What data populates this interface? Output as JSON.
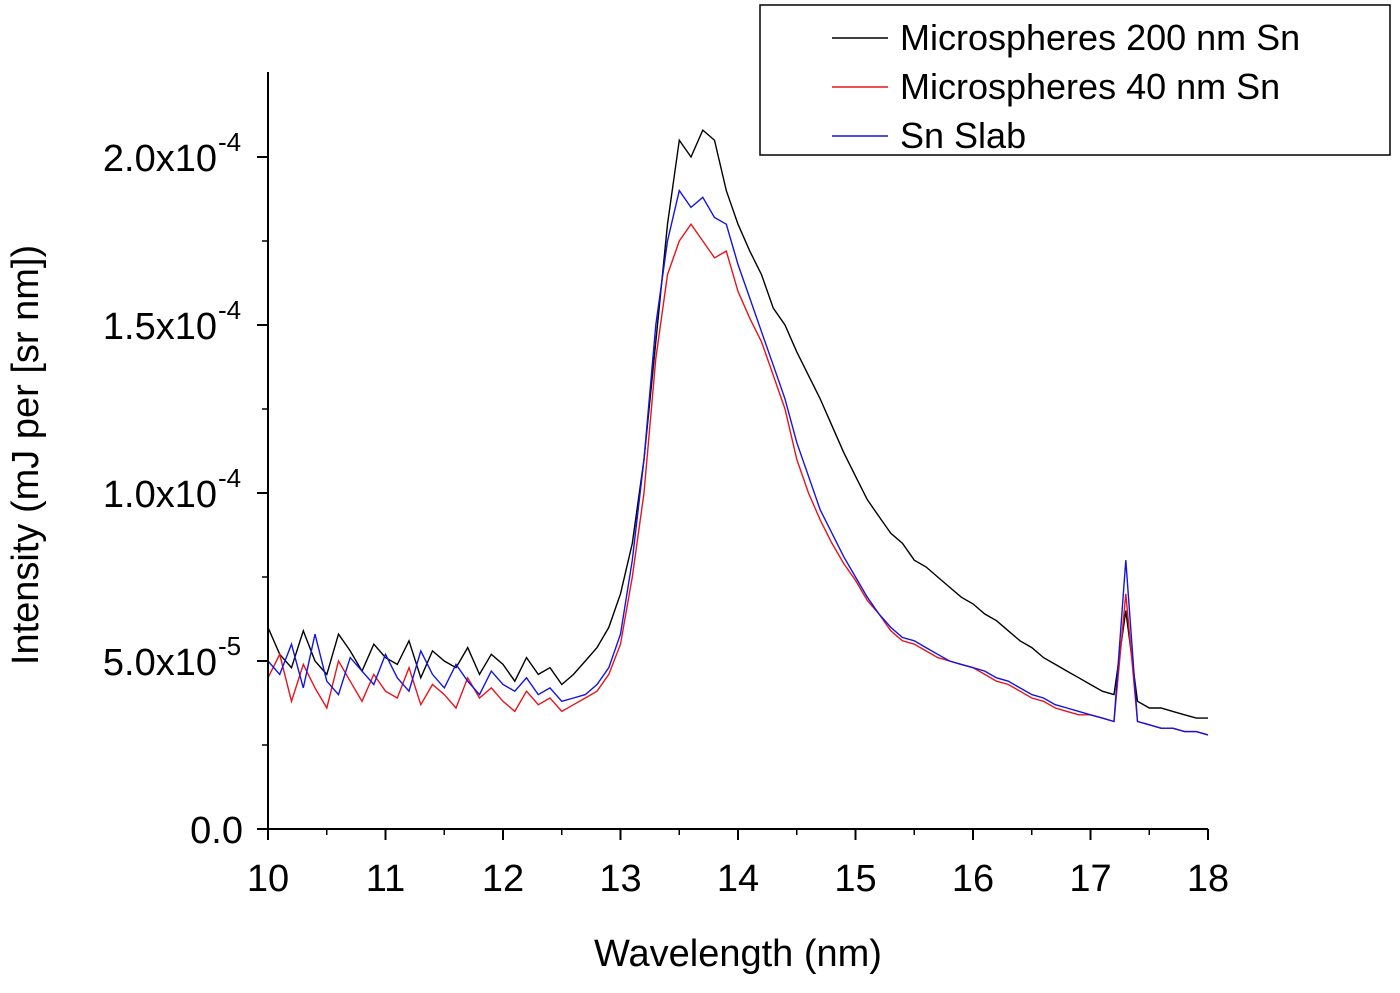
{
  "chart_data": {
    "type": "line",
    "xlabel": "Wavelength (nm)",
    "ylabel": "Intensity (mJ per [sr nm])",
    "xlim": [
      10,
      18
    ],
    "ylim": [
      0,
      0.000225
    ],
    "x_ticks": [
      {
        "value": 10,
        "label": "10"
      },
      {
        "value": 11,
        "label": "11"
      },
      {
        "value": 12,
        "label": "12"
      },
      {
        "value": 13,
        "label": "13"
      },
      {
        "value": 14,
        "label": "14"
      },
      {
        "value": 15,
        "label": "15"
      },
      {
        "value": 16,
        "label": "16"
      },
      {
        "value": 17,
        "label": "17"
      },
      {
        "value": 18,
        "label": "18"
      }
    ],
    "y_ticks": [
      {
        "value": 0,
        "label": "0.0",
        "exponent": ""
      },
      {
        "value": 5e-05,
        "label": "5.0x10",
        "exponent": "-5"
      },
      {
        "value": 0.0001,
        "label": "1.0x10",
        "exponent": "-4"
      },
      {
        "value": 0.00015,
        "label": "1.5x10",
        "exponent": "-4"
      },
      {
        "value": 0.0002,
        "label": "2.0x10",
        "exponent": "-4"
      }
    ],
    "grid": false,
    "legend_position": "top-right",
    "x": [
      10.0,
      10.1,
      10.2,
      10.3,
      10.4,
      10.5,
      10.6,
      10.7,
      10.8,
      10.9,
      11.0,
      11.1,
      11.2,
      11.3,
      11.4,
      11.5,
      11.6,
      11.7,
      11.8,
      11.9,
      12.0,
      12.1,
      12.2,
      12.3,
      12.4,
      12.5,
      12.6,
      12.7,
      12.8,
      12.9,
      13.0,
      13.1,
      13.2,
      13.3,
      13.4,
      13.5,
      13.6,
      13.7,
      13.8,
      13.9,
      14.0,
      14.1,
      14.2,
      14.3,
      14.4,
      14.5,
      14.6,
      14.7,
      14.8,
      14.9,
      15.0,
      15.1,
      15.2,
      15.3,
      15.4,
      15.5,
      15.6,
      15.7,
      15.8,
      15.9,
      16.0,
      16.1,
      16.2,
      16.3,
      16.4,
      16.5,
      16.6,
      16.7,
      16.8,
      16.9,
      17.0,
      17.1,
      17.2,
      17.3,
      17.4,
      17.5,
      17.6,
      17.7,
      17.8,
      17.9,
      18.0
    ],
    "series": [
      {
        "name": "Microspheres 200 nm Sn",
        "color": "#000000",
        "values": [
          6e-05,
          5.2e-05,
          4.8e-05,
          5.9e-05,
          5e-05,
          4.6e-05,
          5.8e-05,
          5.3e-05,
          4.7e-05,
          5.5e-05,
          5.1e-05,
          4.9e-05,
          5.6e-05,
          4.5e-05,
          5.3e-05,
          5e-05,
          4.8e-05,
          5.4e-05,
          4.6e-05,
          5.2e-05,
          4.9e-05,
          4.4e-05,
          5.1e-05,
          4.6e-05,
          4.8e-05,
          4.3e-05,
          4.6e-05,
          5e-05,
          5.4e-05,
          6e-05,
          7e-05,
          8.5e-05,
          0.00011,
          0.000145,
          0.00018,
          0.000205,
          0.0002,
          0.000208,
          0.000205,
          0.00019,
          0.00018,
          0.000172,
          0.000165,
          0.000155,
          0.00015,
          0.000142,
          0.000135,
          0.000128,
          0.00012,
          0.000112,
          0.000105,
          9.8e-05,
          9.3e-05,
          8.8e-05,
          8.5e-05,
          8e-05,
          7.8e-05,
          7.5e-05,
          7.2e-05,
          6.9e-05,
          6.7e-05,
          6.4e-05,
          6.2e-05,
          5.9e-05,
          5.6e-05,
          5.4e-05,
          5.1e-05,
          4.9e-05,
          4.7e-05,
          4.5e-05,
          4.3e-05,
          4.1e-05,
          4e-05,
          6.5e-05,
          3.8e-05,
          3.6e-05,
          3.6e-05,
          3.5e-05,
          3.4e-05,
          3.3e-05,
          3.3e-05
        ]
      },
      {
        "name": "Microspheres 40 nm Sn",
        "color": "#e8141c",
        "values": [
          4.5e-05,
          5.2e-05,
          3.8e-05,
          4.9e-05,
          4.2e-05,
          3.6e-05,
          5e-05,
          4.4e-05,
          3.8e-05,
          4.6e-05,
          4.1e-05,
          3.9e-05,
          4.8e-05,
          3.7e-05,
          4.3e-05,
          4e-05,
          3.6e-05,
          4.5e-05,
          3.9e-05,
          4.2e-05,
          3.8e-05,
          3.5e-05,
          4.1e-05,
          3.7e-05,
          3.9e-05,
          3.5e-05,
          3.7e-05,
          3.9e-05,
          4.1e-05,
          4.6e-05,
          5.5e-05,
          7.5e-05,
          0.0001,
          0.00014,
          0.000165,
          0.000175,
          0.00018,
          0.000175,
          0.00017,
          0.000172,
          0.00016,
          0.000152,
          0.000145,
          0.000135,
          0.000125,
          0.00011,
          0.0001,
          9.2e-05,
          8.5e-05,
          7.9e-05,
          7.4e-05,
          6.8e-05,
          6.4e-05,
          5.9e-05,
          5.6e-05,
          5.5e-05,
          5.3e-05,
          5.1e-05,
          5e-05,
          4.9e-05,
          4.8e-05,
          4.6e-05,
          4.4e-05,
          4.3e-05,
          4.1e-05,
          3.9e-05,
          3.8e-05,
          3.6e-05,
          3.5e-05,
          3.4e-05,
          3.4e-05,
          3.3e-05,
          3.2e-05,
          7e-05,
          3.2e-05,
          3.1e-05,
          3e-05,
          3e-05,
          2.9e-05,
          2.9e-05,
          2.8e-05
        ]
      },
      {
        "name": "Sn Slab",
        "color": "#1414e0",
        "values": [
          5e-05,
          4.6e-05,
          5.5e-05,
          4.2e-05,
          5.8e-05,
          4.4e-05,
          4e-05,
          5.1e-05,
          4.7e-05,
          4.3e-05,
          5.2e-05,
          4.5e-05,
          4.1e-05,
          5.3e-05,
          4.6e-05,
          4.2e-05,
          4.9e-05,
          4.4e-05,
          4e-05,
          4.7e-05,
          4.3e-05,
          4.1e-05,
          4.5e-05,
          4e-05,
          4.2e-05,
          3.8e-05,
          3.9e-05,
          4e-05,
          4.3e-05,
          4.8e-05,
          5.8e-05,
          8e-05,
          0.00011,
          0.00015,
          0.000175,
          0.00019,
          0.000185,
          0.000188,
          0.000182,
          0.00018,
          0.000168,
          0.000158,
          0.000148,
          0.000138,
          0.000128,
          0.000115,
          0.000105,
          9.5e-05,
          8.8e-05,
          8.1e-05,
          7.5e-05,
          6.9e-05,
          6.4e-05,
          6e-05,
          5.7e-05,
          5.6e-05,
          5.4e-05,
          5.2e-05,
          5e-05,
          4.9e-05,
          4.8e-05,
          4.7e-05,
          4.5e-05,
          4.4e-05,
          4.2e-05,
          4e-05,
          3.9e-05,
          3.7e-05,
          3.6e-05,
          3.5e-05,
          3.4e-05,
          3.3e-05,
          3.2e-05,
          8e-05,
          3.2e-05,
          3.1e-05,
          3e-05,
          3e-05,
          2.9e-05,
          2.9e-05,
          2.8e-05
        ]
      }
    ]
  }
}
